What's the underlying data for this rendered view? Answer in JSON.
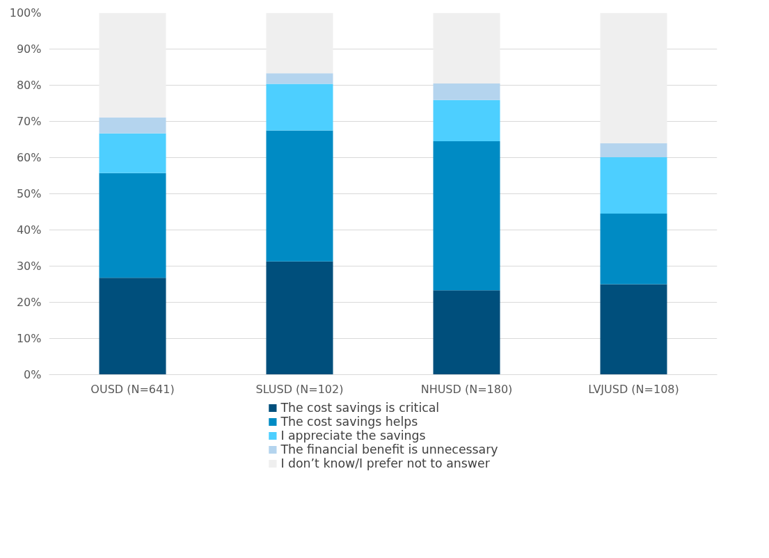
{
  "chart_data": {
    "type": "bar",
    "stacked": true,
    "categories": [
      "OUSD (N=641)",
      "SLUSD (N=102)",
      "NHUSD (N=180)",
      "LVJUSD (N=108)"
    ],
    "series": [
      {
        "name": "The cost savings is critical",
        "color": "#004f7c",
        "values": [
          26.8,
          31.3,
          23.3,
          25.0
        ]
      },
      {
        "name": "The cost savings helps",
        "color": "#008bc4",
        "values": [
          28.9,
          36.2,
          41.2,
          19.5
        ]
      },
      {
        "name": "I appreciate the savings",
        "color": "#4dcfff",
        "values": [
          11.0,
          12.9,
          11.4,
          15.6
        ]
      },
      {
        "name": "The financial benefit is unnecessary",
        "color": "#b4d4ee",
        "values": [
          4.4,
          2.9,
          4.6,
          3.9
        ]
      },
      {
        "name": "I don’t know/I prefer not to answer",
        "color": "#efefef",
        "values": [
          28.9,
          16.7,
          19.5,
          36.0
        ]
      }
    ],
    "ylim": [
      0,
      100
    ],
    "yticks": [
      {
        "value": 0,
        "label": "0%"
      },
      {
        "value": 10,
        "label": "10%"
      },
      {
        "value": 20,
        "label": "20%"
      },
      {
        "value": 30,
        "label": "30%"
      },
      {
        "value": 40,
        "label": "40%"
      },
      {
        "value": 50,
        "label": "50%"
      },
      {
        "value": 60,
        "label": "60%"
      },
      {
        "value": 70,
        "label": "70%"
      },
      {
        "value": 80,
        "label": "80%"
      },
      {
        "value": 90,
        "label": "90%"
      },
      {
        "value": 100,
        "label": "100%"
      }
    ],
    "grid": "y",
    "legend": "bottom"
  }
}
